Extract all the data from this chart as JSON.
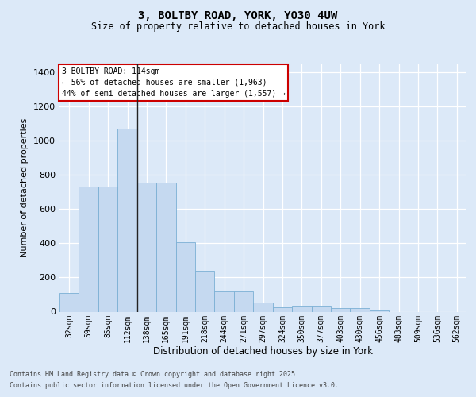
{
  "title1": "3, BOLTBY ROAD, YORK, YO30 4UW",
  "title2": "Size of property relative to detached houses in York",
  "xlabel": "Distribution of detached houses by size in York",
  "ylabel": "Number of detached properties",
  "categories": [
    "32sqm",
    "59sqm",
    "85sqm",
    "112sqm",
    "138sqm",
    "165sqm",
    "191sqm",
    "218sqm",
    "244sqm",
    "271sqm",
    "297sqm",
    "324sqm",
    "350sqm",
    "377sqm",
    "403sqm",
    "430sqm",
    "456sqm",
    "483sqm",
    "509sqm",
    "536sqm",
    "562sqm"
  ],
  "values": [
    107,
    730,
    730,
    1070,
    755,
    755,
    405,
    240,
    120,
    120,
    55,
    25,
    30,
    30,
    20,
    20,
    5,
    0,
    0,
    0,
    0
  ],
  "bar_color": "#c5d9f0",
  "bar_edge_color": "#7bafd4",
  "subject_bin_idx": 3,
  "annotation_title": "3 BOLTBY ROAD: 114sqm",
  "annotation_line1": "← 56% of detached houses are smaller (1,963)",
  "annotation_line2": "44% of semi-detached houses are larger (1,557) →",
  "ylim": [
    0,
    1450
  ],
  "yticks": [
    0,
    200,
    400,
    600,
    800,
    1000,
    1200,
    1400
  ],
  "footer1": "Contains HM Land Registry data © Crown copyright and database right 2025.",
  "footer2": "Contains public sector information licensed under the Open Government Licence v3.0.",
  "bg_color": "#dce9f8",
  "grid_color": "#ffffff",
  "annotation_box_edgecolor": "#cc0000",
  "vline_color": "#222222",
  "title_fontsize": 10,
  "subtitle_fontsize": 8.5,
  "ylabel_fontsize": 8,
  "xlabel_fontsize": 8.5,
  "tick_fontsize": 7,
  "footer_fontsize": 6
}
